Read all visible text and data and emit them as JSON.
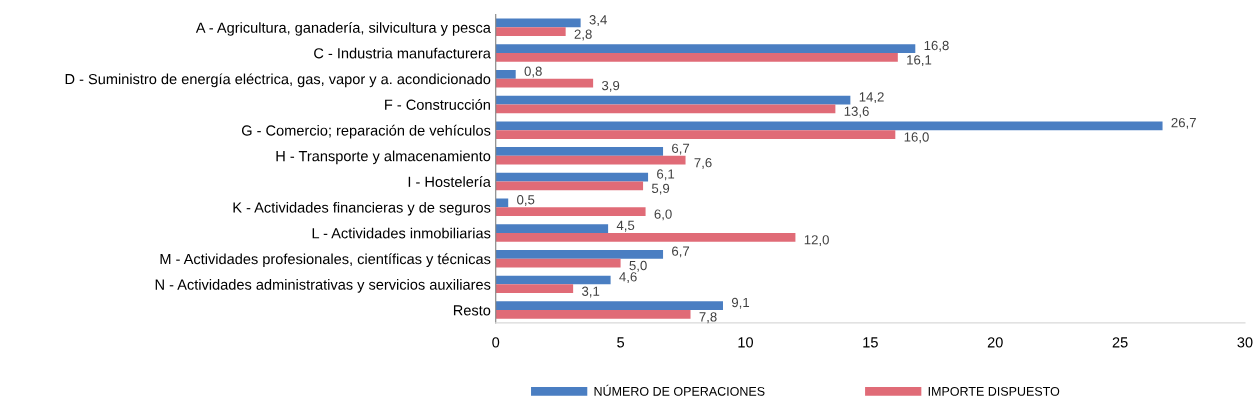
{
  "chart_data": {
    "type": "bar",
    "orientation": "horizontal",
    "categories": [
      "A - Agricultura, ganadería, silvicultura y pesca",
      "C - Industria manufacturera",
      "D - Suministro de energía eléctrica, gas, vapor y a. acondicionado",
      "F - Construcción",
      "G - Comercio; reparación de vehículos",
      "H - Transporte y almacenamiento",
      "I - Hostelería",
      "K - Actividades financieras y de seguros",
      "L - Actividades inmobiliarias",
      "M - Actividades profesionales, científicas y técnicas",
      "N - Actividades administrativas y servicios auxiliares",
      "Resto"
    ],
    "series": [
      {
        "name": "NÚMERO DE OPERACIONES",
        "color": "#4a7ec2",
        "values": [
          3.4,
          16.8,
          0.8,
          14.2,
          26.7,
          6.7,
          6.1,
          0.5,
          4.5,
          6.7,
          4.6,
          9.1
        ],
        "value_labels": [
          "3,4",
          "16,8",
          "0,8",
          "14,2",
          "26,7",
          "6,7",
          "6,1",
          "0,5",
          "4,5",
          "6,7",
          "4,6",
          "9,1"
        ]
      },
      {
        "name": "IMPORTE DISPUESTO",
        "color": "#e06b77",
        "values": [
          2.8,
          16.1,
          3.9,
          13.6,
          16.0,
          7.6,
          5.9,
          6.0,
          12.0,
          5.0,
          3.1,
          7.8
        ],
        "value_labels": [
          "2,8",
          "16,1",
          "3,9",
          "13,6",
          "16,0",
          "7,6",
          "5,9",
          "6,0",
          "12,0",
          "5,0",
          "3,1",
          "7,8"
        ]
      }
    ],
    "xlim": [
      0,
      30
    ],
    "xticks": [
      0,
      5,
      10,
      15,
      20,
      25,
      30
    ],
    "grid": false,
    "legend": "bottom"
  }
}
